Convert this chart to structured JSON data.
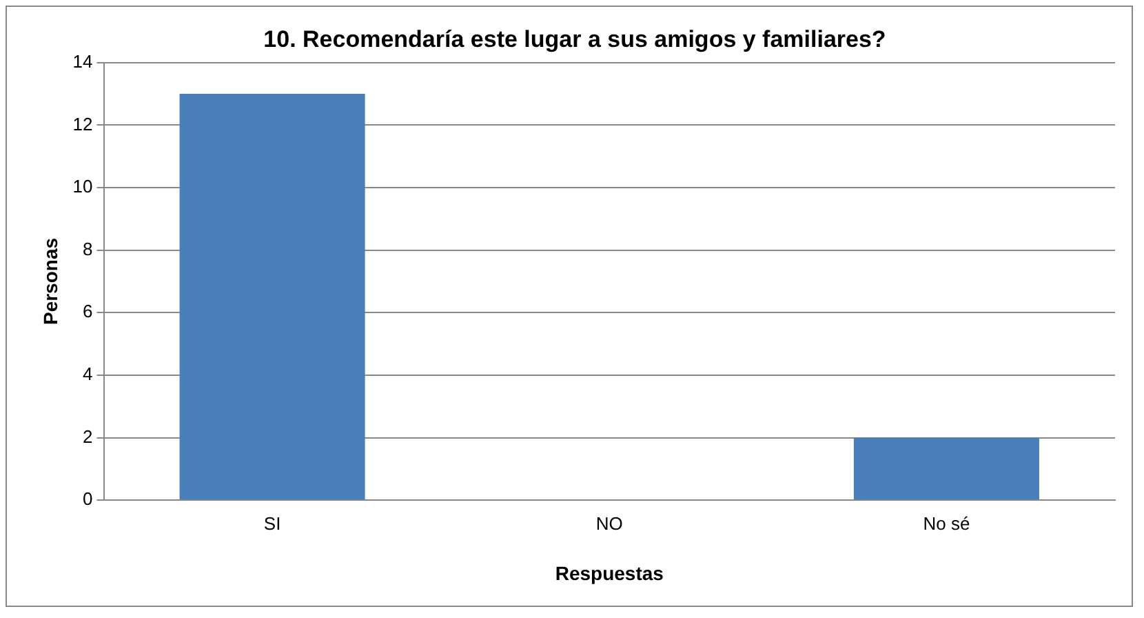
{
  "chart_data": {
    "type": "bar",
    "title": "10. Recomendaría este lugar a sus amigos y familiares?",
    "xlabel": "Respuestas",
    "ylabel": "Personas",
    "categories": [
      "SI",
      "NO",
      "No sé"
    ],
    "values": [
      13,
      0,
      2
    ],
    "color": "#4a7ebb",
    "ylim": [
      0,
      14
    ],
    "yticks": [
      0,
      2,
      4,
      6,
      8,
      10,
      12,
      14
    ],
    "grid": "y",
    "legend": false
  }
}
